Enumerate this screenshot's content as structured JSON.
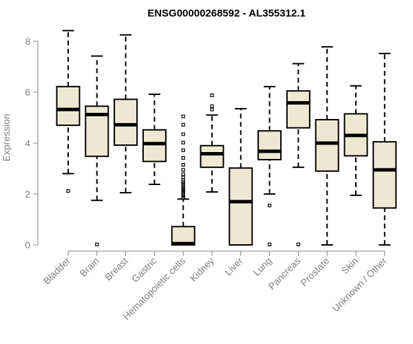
{
  "chart_data": {
    "type": "boxplot",
    "title": "ENSG00000268592 - AL355312.1",
    "xlabel": "",
    "ylabel": "Expression",
    "ylim": [
      0,
      8.4
    ],
    "yticks": [
      0,
      2,
      4,
      6,
      8
    ],
    "colors": {
      "box_fill": "#eee8d2",
      "box_stroke": "#000000",
      "axis": "#808080"
    },
    "categories": [
      "Bladder",
      "Brain",
      "Breast",
      "Gastric",
      "Hematopoietic cells",
      "Kidney",
      "Liver",
      "Lung",
      "Pancreas",
      "Prostate",
      "Skin",
      "Unknown / Other"
    ],
    "boxes": [
      {
        "category": "Bladder",
        "min": 2.8,
        "q1": 4.7,
        "median": 5.32,
        "q3": 6.22,
        "max": 8.42,
        "outliers": [
          2.12
        ]
      },
      {
        "category": "Brain",
        "min": 1.75,
        "q1": 3.48,
        "median": 5.12,
        "q3": 5.45,
        "max": 7.42,
        "outliers": [
          0.02
        ]
      },
      {
        "category": "Breast",
        "min": 2.05,
        "q1": 3.92,
        "median": 4.72,
        "q3": 5.72,
        "max": 8.25,
        "outliers": []
      },
      {
        "category": "Gastric",
        "min": 2.38,
        "q1": 3.28,
        "median": 3.98,
        "q3": 4.52,
        "max": 5.92,
        "outliers": []
      },
      {
        "category": "Hematopoietic cells",
        "min": 0.0,
        "q1": 0.0,
        "median": 0.05,
        "q3": 0.72,
        "max": 1.8,
        "outliers": [
          1.85,
          1.92,
          2.0,
          2.08,
          2.15,
          2.22,
          2.3,
          2.38,
          2.46,
          2.55,
          2.65,
          2.78,
          2.95,
          3.15,
          3.42,
          3.72,
          4.02,
          4.35,
          4.72,
          5.05
        ]
      },
      {
        "category": "Kidney",
        "min": 2.08,
        "q1": 3.05,
        "median": 3.58,
        "q3": 3.9,
        "max": 5.1,
        "outliers": [
          5.32,
          5.45,
          5.88
        ]
      },
      {
        "category": "Liver",
        "min": 0.0,
        "q1": 0.0,
        "median": 1.7,
        "q3": 3.02,
        "max": 5.35,
        "outliers": []
      },
      {
        "category": "Lung",
        "min": 2.0,
        "q1": 3.35,
        "median": 3.68,
        "q3": 4.48,
        "max": 6.22,
        "outliers": [
          1.55,
          0.02
        ]
      },
      {
        "category": "Pancreas",
        "min": 3.05,
        "q1": 4.6,
        "median": 5.58,
        "q3": 6.05,
        "max": 7.12,
        "outliers": [
          0.02
        ]
      },
      {
        "category": "Prostate",
        "min": 0.0,
        "q1": 2.9,
        "median": 4.0,
        "q3": 4.92,
        "max": 7.78,
        "outliers": []
      },
      {
        "category": "Skin",
        "min": 1.95,
        "q1": 3.5,
        "median": 4.3,
        "q3": 5.15,
        "max": 6.25,
        "outliers": []
      },
      {
        "category": "Unknown / Other",
        "min": 0.0,
        "q1": 1.45,
        "median": 2.95,
        "q3": 4.05,
        "max": 7.52,
        "outliers": []
      }
    ]
  }
}
